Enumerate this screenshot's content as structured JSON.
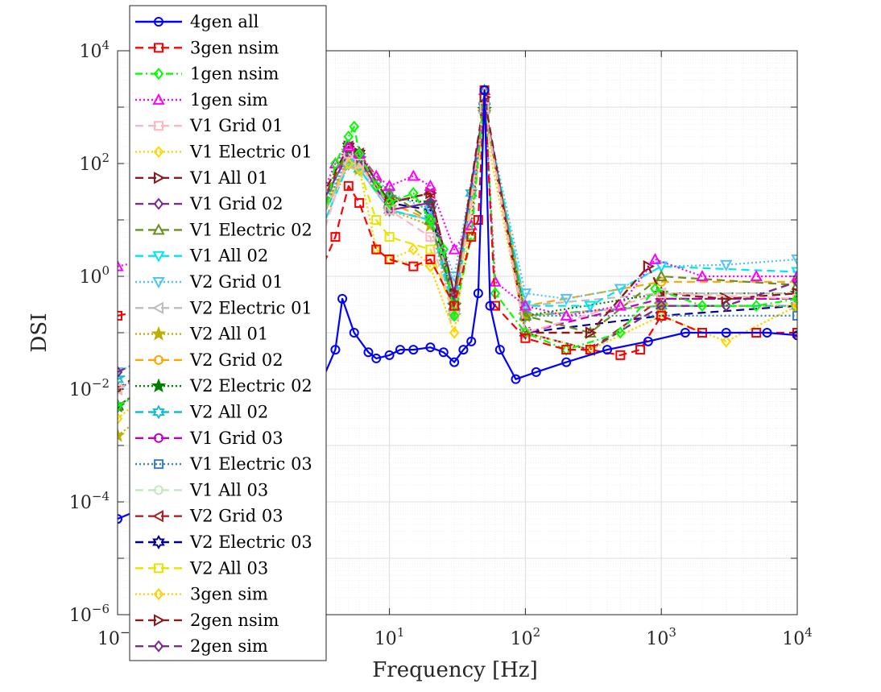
{
  "chart_data": {
    "type": "line",
    "title": "",
    "xlabel": "Frequency [Hz]",
    "ylabel": "DSI",
    "xscale": "log",
    "yscale": "log",
    "xlim": [
      0.1,
      10000
    ],
    "ylim": [
      1e-06,
      10000
    ],
    "grid": true,
    "minor_grid": true,
    "legend_position": "top-left",
    "x_ticks": [
      {
        "value": 0.1,
        "base": "10",
        "exp": "−1"
      },
      {
        "value": 10,
        "base": "10",
        "exp": "1"
      },
      {
        "value": 100,
        "base": "10",
        "exp": "2"
      },
      {
        "value": 1000,
        "base": "10",
        "exp": "3"
      },
      {
        "value": 10000,
        "base": "10",
        "exp": "4"
      }
    ],
    "y_ticks": [
      {
        "value": 1e-06,
        "base": "10",
        "exp": "−6"
      },
      {
        "value": 0.0001,
        "base": "10",
        "exp": "−4"
      },
      {
        "value": 0.01,
        "base": "10",
        "exp": "−2"
      },
      {
        "value": 1,
        "base": "10",
        "exp": "0"
      },
      {
        "value": 100,
        "base": "10",
        "exp": "2"
      },
      {
        "value": 10000,
        "base": "10",
        "exp": "4"
      }
    ],
    "series": [
      {
        "name": "4gen all",
        "color": "#0000FF",
        "dash": "solid",
        "marker": "circle",
        "x": [
          0.1,
          0.2,
          1,
          3,
          4,
          4.5,
          5.5,
          7,
          8,
          10,
          12,
          15,
          20,
          25,
          30,
          35,
          40,
          45,
          50,
          55,
          65,
          85,
          120,
          200,
          400,
          800,
          1500,
          3000,
          6000,
          10000
        ],
        "y": [
          5e-05,
          0.0001,
          0.002,
          0.01,
          0.05,
          0.4,
          0.1,
          0.045,
          0.035,
          0.04,
          0.05,
          0.05,
          0.055,
          0.045,
          0.03,
          0.05,
          0.07,
          0.5,
          2000,
          0.3,
          0.05,
          0.015,
          0.02,
          0.03,
          0.05,
          0.07,
          0.1,
          0.1,
          0.1,
          0.09
        ]
      },
      {
        "name": "3gen nsim",
        "color": "#FF0000",
        "dash": "dashed",
        "marker": "square",
        "x": [
          0.1,
          1,
          3,
          4,
          5,
          6,
          8,
          10,
          15,
          20,
          30,
          40,
          45,
          50,
          60,
          100,
          200,
          300,
          500,
          700,
          1000,
          2000,
          5000,
          10000
        ],
        "y": [
          0.2,
          0.6,
          1,
          5,
          40,
          20,
          3,
          2,
          1.5,
          2,
          0.3,
          5,
          10,
          2000,
          0.3,
          0.08,
          0.05,
          0.05,
          0.04,
          0.05,
          0.2,
          0.1,
          0.1,
          0.1
        ]
      },
      {
        "name": "1gen nsim",
        "color": "#00FF00",
        "dash": "dashdot",
        "marker": "diamond",
        "x": [
          0.1,
          1,
          3,
          4,
          5,
          5.5,
          6,
          8,
          10,
          15,
          20,
          25,
          30,
          40,
          50,
          60,
          100,
          200,
          500,
          900,
          2000,
          5000,
          10000
        ],
        "y": [
          0.005,
          0.1,
          3,
          100,
          300,
          450,
          150,
          40,
          20,
          30,
          10,
          3,
          0.2,
          5,
          2000,
          0.5,
          0.1,
          0.05,
          0.1,
          0.6,
          0.3,
          0.3,
          0.4
        ]
      },
      {
        "name": "1gen sim",
        "color": "#FF00FF",
        "dash": "dotted",
        "marker": "triangle-up",
        "x": [
          0.1,
          1,
          3,
          4,
          5,
          6,
          8,
          10,
          15,
          20,
          30,
          40,
          50,
          60,
          100,
          200,
          500,
          900,
          2000,
          5000,
          10000
        ],
        "y": [
          1.5,
          5,
          20,
          100,
          200,
          150,
          60,
          40,
          60,
          40,
          3,
          8,
          2000,
          0.8,
          0.3,
          0.2,
          0.3,
          2,
          1,
          1,
          1
        ]
      },
      {
        "name": "V1 Grid 01",
        "color": "#FFB6C1",
        "dash": "dashed",
        "marker": "square",
        "x": [
          0.1,
          1,
          3,
          5,
          6,
          10,
          20,
          30,
          50,
          100,
          1000,
          10000
        ],
        "y": [
          0.01,
          0.2,
          3,
          150,
          100,
          15,
          5,
          0.2,
          1000,
          0.1,
          0.5,
          0.4
        ]
      },
      {
        "name": "V1 Electric 01",
        "color": "#FFD700",
        "dash": "dotted",
        "marker": "diamond",
        "x": [
          0.1,
          1,
          3,
          5,
          6,
          8,
          10,
          15,
          20,
          30,
          50,
          100,
          300,
          1000,
          3000,
          10000
        ],
        "y": [
          0.003,
          0.3,
          10,
          100,
          80,
          3,
          2,
          3,
          1.5,
          0.1,
          500,
          0.1,
          0.05,
          0.2,
          0.07,
          0.3
        ]
      },
      {
        "name": "V1 All 01",
        "color": "#8B1A1A",
        "dash": "dashed",
        "marker": "triangle-right",
        "x": [
          0.1,
          1,
          3,
          5,
          6,
          10,
          20,
          30,
          50,
          100,
          300,
          800,
          1000,
          3000,
          10000
        ],
        "y": [
          0.01,
          0.5,
          20,
          200,
          150,
          20,
          30,
          0.5,
          1500,
          0.1,
          0.1,
          1.5,
          0.5,
          0.4,
          0.5
        ]
      },
      {
        "name": "V1 Grid 02",
        "color": "#7B2D8B",
        "dash": "dashed",
        "marker": "diamond",
        "x": [
          0.1,
          1,
          3,
          5,
          6,
          10,
          20,
          30,
          50,
          100,
          300,
          1000,
          3000,
          10000
        ],
        "y": [
          0.02,
          0.3,
          15,
          150,
          120,
          15,
          20,
          0.5,
          1200,
          0.1,
          0.05,
          0.3,
          0.3,
          0.8
        ]
      },
      {
        "name": "V1 Electric 02",
        "color": "#6B8E23",
        "dash": "dashed",
        "marker": "triangle-up",
        "x": [
          0.1,
          1,
          3,
          5,
          6,
          10,
          20,
          30,
          50,
          100,
          300,
          1000,
          10000
        ],
        "y": [
          0.005,
          0.2,
          10,
          200,
          150,
          30,
          10,
          0.3,
          1000,
          0.2,
          0.1,
          1,
          0.7
        ]
      },
      {
        "name": "V1 All 02",
        "color": "#00E5EE",
        "dash": "dashed",
        "marker": "triangle-down",
        "x": [
          0.1,
          1,
          3,
          5,
          6,
          10,
          20,
          30,
          50,
          100,
          300,
          1000,
          10000
        ],
        "y": [
          0.01,
          0.1,
          5,
          100,
          80,
          15,
          10,
          0.2,
          1000,
          0.3,
          0.3,
          1.5,
          1.2
        ]
      },
      {
        "name": "V2 Grid 01",
        "color": "#4FC3F7",
        "dash": "dotted",
        "marker": "triangle-down",
        "x": [
          0.1,
          1,
          3,
          5,
          6,
          10,
          20,
          30,
          50,
          100,
          200,
          500,
          1000,
          3000,
          10000
        ],
        "y": [
          0.02,
          0.3,
          10,
          150,
          120,
          30,
          15,
          1,
          1000,
          0.5,
          0.4,
          0.6,
          1.5,
          1.6,
          2
        ]
      },
      {
        "name": "V2 Electric 01",
        "color": "#BDBDBD",
        "dash": "dashed",
        "marker": "triangle-left",
        "x": [
          0.1,
          1,
          3,
          5,
          6,
          10,
          20,
          30,
          50,
          100,
          1000,
          10000
        ],
        "y": [
          0.01,
          0.2,
          8,
          100,
          80,
          15,
          10,
          0.5,
          800,
          0.3,
          0.5,
          0.5
        ]
      },
      {
        "name": "V2 All 01",
        "color": "#BDB000",
        "dash": "dotted",
        "marker": "star",
        "x": [
          0.1,
          1,
          3,
          5,
          6,
          10,
          20,
          30,
          50,
          100,
          1000,
          10000
        ],
        "y": [
          0.0015,
          0.1,
          5,
          100,
          80,
          15,
          8,
          0.2,
          800,
          0.2,
          0.3,
          0.3
        ]
      },
      {
        "name": "V2 Grid 02",
        "color": "#FFA500",
        "dash": "dashed",
        "marker": "circle",
        "x": [
          0.1,
          1,
          3,
          5,
          6,
          10,
          20,
          30,
          50,
          100,
          1000,
          10000
        ],
        "y": [
          0.01,
          0.2,
          8,
          120,
          100,
          20,
          10,
          0.3,
          900,
          0.3,
          0.8,
          0.8
        ]
      },
      {
        "name": "V2 Electric 02",
        "color": "#008000",
        "dash": "dotted",
        "marker": "star",
        "x": [
          0.1,
          1,
          3,
          5,
          6,
          10,
          20,
          30,
          50,
          100,
          1000,
          10000
        ],
        "y": [
          0.005,
          0.2,
          10,
          150,
          120,
          25,
          20,
          0.3,
          900,
          0.2,
          0.5,
          0.5
        ]
      },
      {
        "name": "V2 All 02",
        "color": "#17BECF",
        "dash": "dashed",
        "marker": "hexagram",
        "x": [
          0.1,
          1,
          3,
          5,
          6,
          10,
          20,
          30,
          40,
          50,
          100,
          1000,
          10000
        ],
        "y": [
          0.015,
          0.2,
          8,
          100,
          80,
          15,
          10,
          0.3,
          30,
          900,
          0.2,
          0.3,
          0.3
        ]
      },
      {
        "name": "V1 Grid 03",
        "color": "#BF00BF",
        "dash": "dashed",
        "marker": "circle",
        "x": [
          0.1,
          1,
          3,
          5,
          6,
          10,
          20,
          30,
          50,
          100,
          1000,
          10000
        ],
        "y": [
          0.01,
          0.3,
          15,
          150,
          120,
          15,
          20,
          0.4,
          1000,
          0.1,
          0.4,
          0.4
        ]
      },
      {
        "name": "V1 Electric 03",
        "color": "#3D7FC1",
        "dash": "dotted",
        "marker": "square",
        "x": [
          0.1,
          1,
          3,
          5,
          6,
          10,
          20,
          30,
          50,
          100,
          1000,
          10000
        ],
        "y": [
          0.01,
          0.2,
          10,
          120,
          100,
          15,
          10,
          0.3,
          900,
          0.2,
          0.2,
          0.2
        ]
      },
      {
        "name": "V1 All 03",
        "color": "#C1E8C1",
        "dash": "dashed",
        "marker": "circle",
        "x": [
          0.1,
          1,
          3,
          5,
          6,
          10,
          20,
          30,
          50,
          100,
          1000,
          10000
        ],
        "y": [
          0.01,
          0.2,
          10,
          120,
          100,
          15,
          10,
          0.3,
          900,
          0.2,
          0.3,
          0.3
        ]
      },
      {
        "name": "V2 Grid 03",
        "color": "#B22222",
        "dash": "dashed",
        "marker": "triangle-left",
        "x": [
          0.1,
          1,
          3,
          5,
          6,
          10,
          20,
          30,
          50,
          100,
          300,
          1000,
          10000
        ],
        "y": [
          0.01,
          0.3,
          15,
          200,
          150,
          20,
          30,
          0.5,
          1200,
          0.1,
          0.05,
          0.4,
          0.4
        ]
      },
      {
        "name": "V2 Electric 03",
        "color": "#00008B",
        "dash": "dashed",
        "marker": "hexagram",
        "x": [
          0.1,
          1,
          3,
          5,
          6,
          10,
          20,
          30,
          50,
          100,
          1000,
          10000
        ],
        "y": [
          0.005,
          0.2,
          10,
          200,
          150,
          20,
          15,
          0.3,
          1000,
          0.1,
          0.2,
          0.3
        ]
      },
      {
        "name": "V2 All 03",
        "color": "#E6E600",
        "dash": "dashed",
        "marker": "square",
        "x": [
          0.1,
          1,
          3,
          5,
          6,
          8,
          10,
          20,
          30,
          50,
          100,
          1000,
          10000
        ],
        "y": [
          0.01,
          0.2,
          8,
          100,
          80,
          10,
          5,
          3,
          0.2,
          800,
          0.2,
          0.3,
          0.3
        ]
      },
      {
        "name": "3gen sim",
        "color": "#FFD000",
        "dash": "dotted",
        "marker": "diamond",
        "x": [
          0.1,
          1,
          3,
          5,
          6,
          8,
          10,
          20,
          30,
          50,
          100,
          300,
          1000,
          3000,
          10000
        ],
        "y": [
          0.003,
          0.3,
          10,
          100,
          80,
          3,
          2,
          1.5,
          0.1,
          500,
          0.1,
          0.05,
          0.2,
          0.07,
          0.3
        ]
      },
      {
        "name": "2gen nsim",
        "color": "#8B1A1A",
        "dash": "dashed",
        "marker": "triangle-right",
        "x": [
          0.1,
          1,
          3,
          5,
          6,
          10,
          20,
          30,
          50,
          100,
          300,
          800,
          1000,
          3000,
          10000
        ],
        "y": [
          0.01,
          0.5,
          20,
          200,
          150,
          20,
          30,
          0.5,
          1500,
          0.1,
          0.1,
          1.5,
          0.5,
          0.4,
          0.5
        ]
      },
      {
        "name": "2gen sim",
        "color": "#7B2D8B",
        "dash": "dashed",
        "marker": "diamond",
        "x": [
          0.1,
          1,
          3,
          5,
          6,
          10,
          20,
          30,
          50,
          100,
          300,
          1000,
          3000,
          10000
        ],
        "y": [
          0.02,
          0.3,
          15,
          150,
          120,
          15,
          20,
          0.5,
          1200,
          0.1,
          0.05,
          0.3,
          0.3,
          0.8
        ]
      }
    ]
  }
}
